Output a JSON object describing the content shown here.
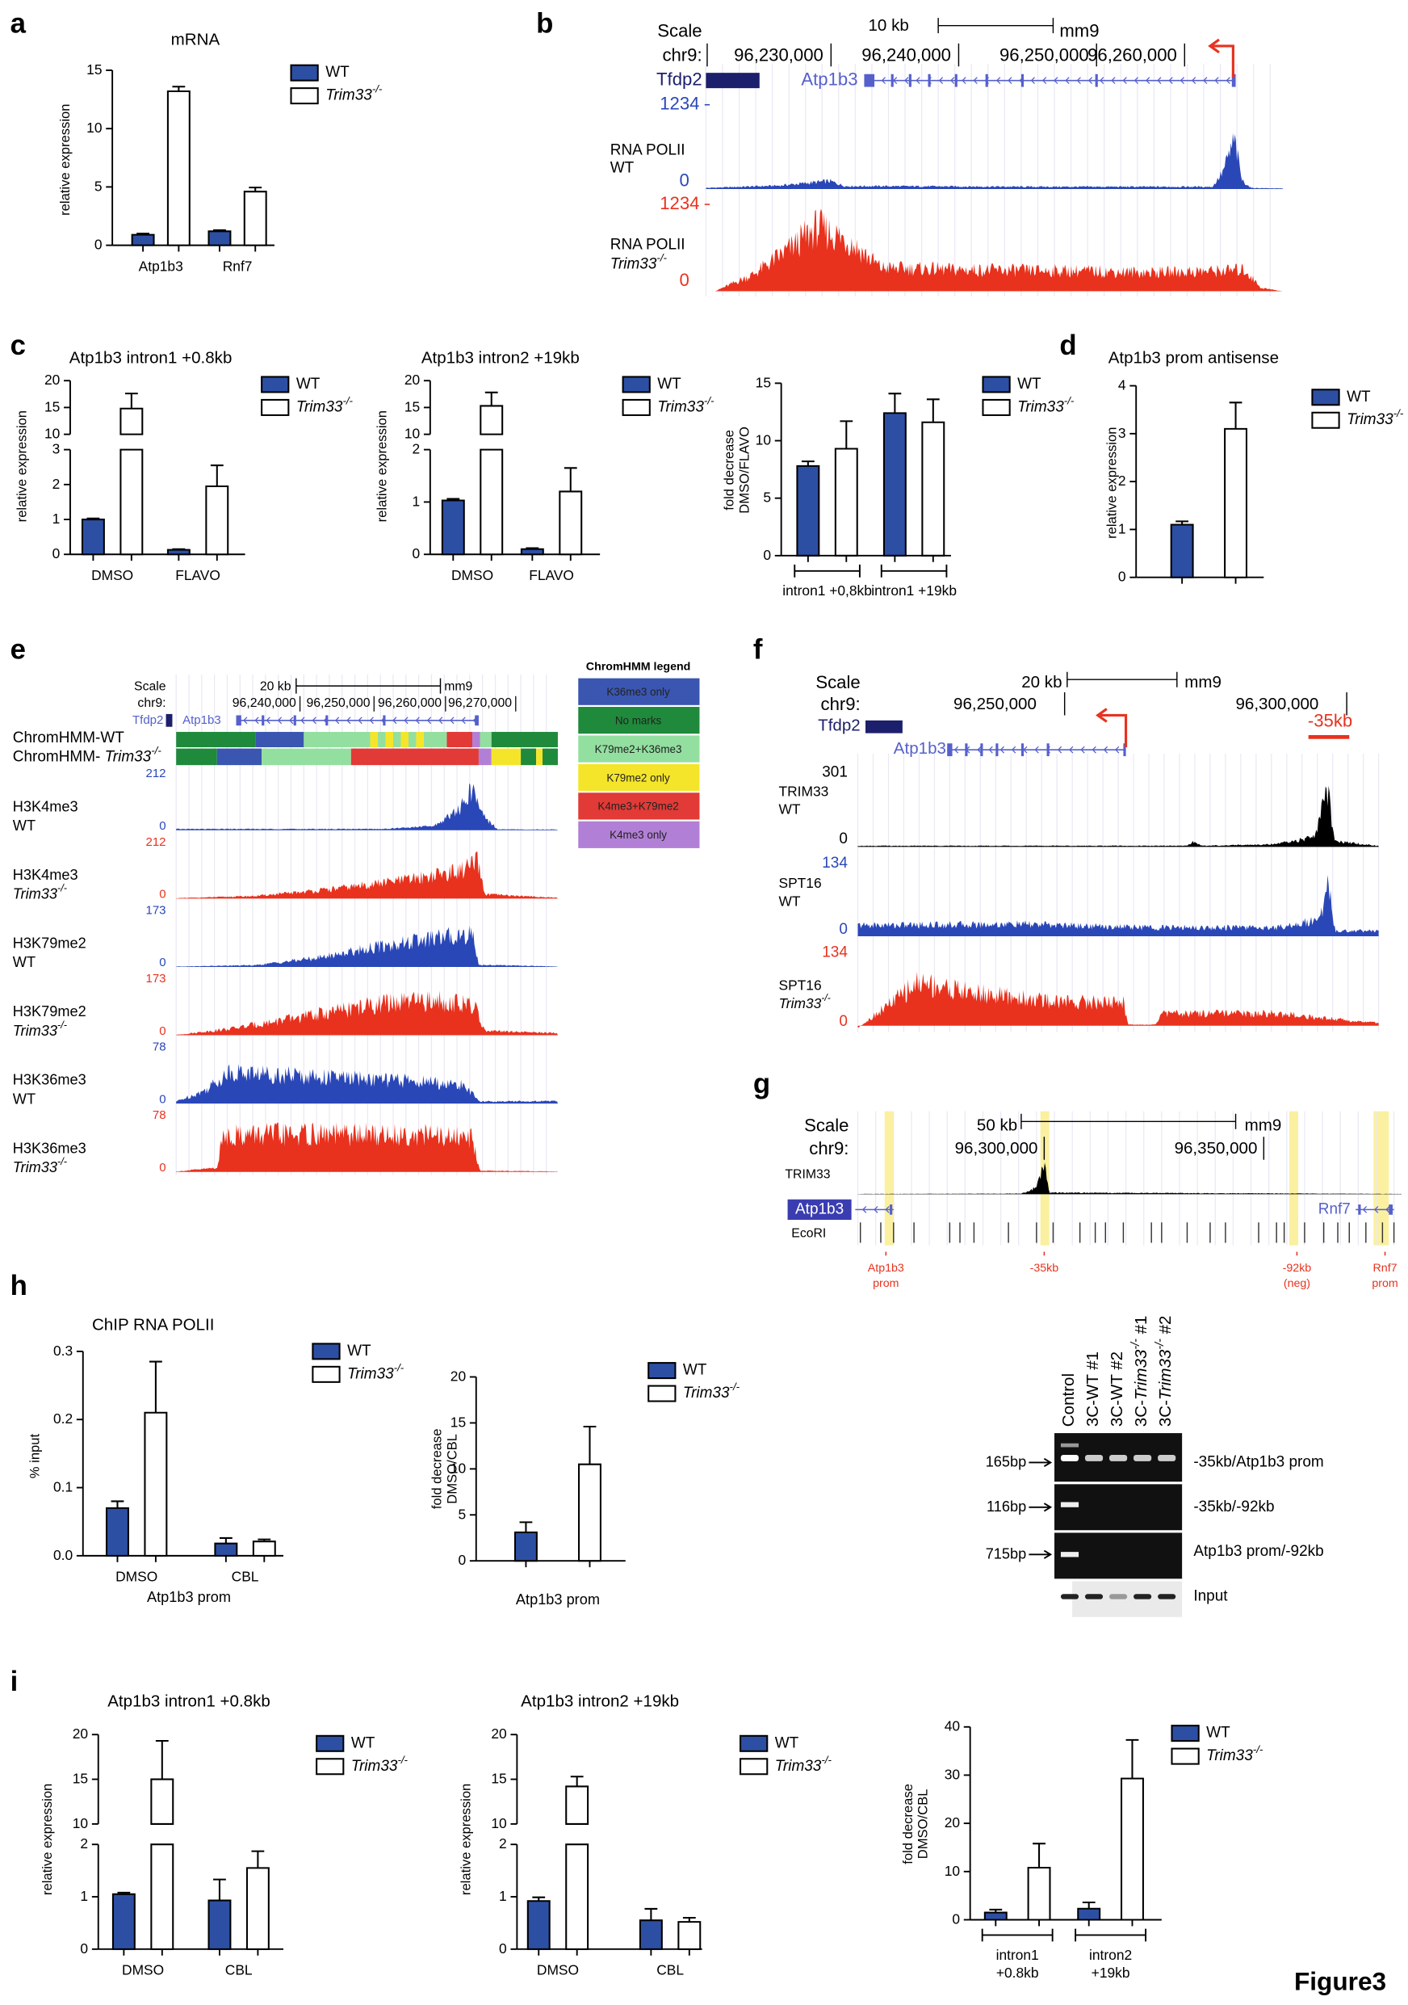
{
  "panel_labels": [
    "a",
    "b",
    "c",
    "d",
    "e",
    "f",
    "g",
    "h",
    "i"
  ],
  "figure_label": "Figure3",
  "chart_data": [
    {
      "type": "bar",
      "title": "mRNA",
      "ylabel": "relative expression",
      "categories": [
        "Atp1b3",
        "Rnf7"
      ],
      "series": [
        {
          "name": "WT",
          "color": "#2d4fa3",
          "values": [
            0.9,
            1.2
          ],
          "errors": [
            0.1,
            0.1
          ]
        },
        {
          "name": "Trim33-/-",
          "color": "#ffffff",
          "values": [
            13.2,
            4.6
          ],
          "errors": [
            0.4,
            0.35
          ]
        }
      ],
      "ylim": [
        0,
        15
      ],
      "yticks": [
        0,
        5,
        10,
        15
      ]
    },
    {
      "type": "bar",
      "title": "Atp1b3 intron1 +0.8kb",
      "ylabel": "relative expression",
      "categories": [
        "DMSO",
        "FLAVO"
      ],
      "series": [
        {
          "name": "WT",
          "color": "#2d4fa3",
          "values": [
            1.0,
            0.13
          ],
          "errors": [
            0.03,
            0.02
          ]
        },
        {
          "name": "Trim33-/-",
          "color": "#ffffff",
          "values": [
            14.8,
            1.95
          ],
          "errors": [
            2.8,
            0.6
          ]
        }
      ],
      "ylim": [
        0,
        20
      ],
      "ybreak": [
        3,
        10
      ],
      "yticks": [
        0,
        1,
        2,
        3,
        10,
        15,
        20
      ]
    },
    {
      "type": "bar",
      "title": "Atp1b3 intron2 +19kb",
      "ylabel": "relative expression",
      "categories": [
        "DMSO",
        "FLAVO"
      ],
      "series": [
        {
          "name": "WT",
          "color": "#2d4fa3",
          "values": [
            1.03,
            0.1
          ],
          "errors": [
            0.03,
            0.02
          ]
        },
        {
          "name": "Trim33-/-",
          "color": "#ffffff",
          "values": [
            15.3,
            1.2
          ],
          "errors": [
            2.5,
            0.45
          ]
        }
      ],
      "ylim": [
        0,
        20
      ],
      "ybreak": [
        2,
        10
      ],
      "yticks": [
        0,
        1,
        2,
        10,
        15,
        20
      ]
    },
    {
      "type": "bar",
      "ylabel": [
        "fold decrease",
        "DMSO/FLAVO"
      ],
      "categories": [
        "intron1 +0,8kb",
        "intron1 +19kb"
      ],
      "brackets": true,
      "series": [
        {
          "name": "WT",
          "color": "#2d4fa3",
          "values": [
            7.8,
            12.4
          ],
          "errors": [
            0.4,
            1.7
          ]
        },
        {
          "name": "Trim33-/-",
          "color": "#ffffff",
          "values": [
            9.3,
            11.6
          ],
          "errors": [
            2.4,
            2.0
          ]
        }
      ],
      "ylim": [
        0,
        15
      ],
      "yticks": [
        0,
        5,
        10,
        15
      ]
    },
    {
      "type": "bar",
      "title": "Atp1b3 prom antisense",
      "ylabel": "relative expression",
      "categories": [
        null
      ],
      "series": [
        {
          "name": "WT",
          "color": "#2d4fa3",
          "values": [
            1.1
          ],
          "errors": [
            0.07
          ]
        },
        {
          "name": "Trim33-/-",
          "color": "#ffffff",
          "values": [
            3.1
          ],
          "errors": [
            0.55
          ]
        }
      ],
      "ylim": [
        0,
        4
      ],
      "yticks": [
        0,
        1,
        2,
        3,
        4
      ]
    },
    {
      "type": "bar",
      "title": "ChIP RNA POLII",
      "ylabel": "% input",
      "xlabel": "Atp1b3 prom",
      "categories": [
        "DMSO",
        "CBL"
      ],
      "series": [
        {
          "name": "WT",
          "color": "#2d4fa3",
          "values": [
            0.07,
            0.018
          ],
          "errors": [
            0.01,
            0.008
          ]
        },
        {
          "name": "Trim33-/-",
          "color": "#ffffff",
          "values": [
            0.21,
            0.021
          ],
          "errors": [
            0.075,
            0.003
          ]
        }
      ],
      "ylim": [
        0,
        0.3
      ],
      "yticks": [
        {
          "value": 0,
          "label": "0.0"
        },
        0.1,
        0.2,
        0.3
      ]
    },
    {
      "type": "bar",
      "ylabel": [
        "fold decrease",
        "DMSO/CBL"
      ],
      "xlabel": "Atp1b3 prom",
      "categories": [
        null
      ],
      "series": [
        {
          "name": "WT",
          "color": "#2d4fa3",
          "values": [
            3.1
          ],
          "errors": [
            1.1
          ]
        },
        {
          "name": "Trim33-/-",
          "color": "#ffffff",
          "values": [
            10.5
          ],
          "errors": [
            4.1
          ]
        }
      ],
      "ylim": [
        0,
        20
      ],
      "yticks": [
        0,
        5,
        10,
        15,
        20
      ]
    },
    {
      "type": "bar",
      "title": "Atp1b3 intron1 +0.8kb",
      "ylabel": "relative expression",
      "categories": [
        "DMSO",
        "CBL"
      ],
      "series": [
        {
          "name": "WT",
          "color": "#2d4fa3",
          "values": [
            1.05,
            0.93
          ],
          "errors": [
            0.03,
            0.4
          ]
        },
        {
          "name": "Trim33-/-",
          "color": "#ffffff",
          "values": [
            15.0,
            1.55
          ],
          "errors": [
            4.3,
            0.32
          ]
        }
      ],
      "ylim": [
        0,
        20
      ],
      "ybreak": [
        2,
        10
      ],
      "yticks": [
        0,
        1,
        2,
        10,
        15,
        20
      ]
    },
    {
      "type": "bar",
      "title": "Atp1b3 intron2 +19kb",
      "ylabel": "relative expression",
      "categories": [
        "DMSO",
        "CBL"
      ],
      "series": [
        {
          "name": "WT",
          "color": "#2d4fa3",
          "values": [
            0.92,
            0.55
          ],
          "errors": [
            0.07,
            0.22
          ]
        },
        {
          "name": "Trim33-/-",
          "color": "#ffffff",
          "values": [
            14.2,
            0.52
          ],
          "errors": [
            1.1,
            0.08
          ]
        }
      ],
      "ylim": [
        0,
        20
      ],
      "ybreak": [
        2,
        10
      ],
      "yticks": [
        0,
        1,
        2,
        10,
        15,
        20
      ]
    },
    {
      "type": "bar",
      "ylabel": [
        "fold decrease",
        "DMSO/CBL"
      ],
      "categories": [
        [
          "intron1",
          "+0.8kb"
        ],
        [
          "intron2",
          "+19kb"
        ]
      ],
      "brackets": true,
      "series": [
        {
          "name": "WT",
          "color": "#2d4fa3",
          "values": [
            1.5,
            2.3
          ],
          "errors": [
            0.6,
            1.3
          ]
        },
        {
          "name": "Trim33-/-",
          "color": "#ffffff",
          "values": [
            10.8,
            29.3
          ],
          "errors": [
            5.0,
            8.0
          ]
        }
      ],
      "ylim": [
        0,
        40
      ],
      "yticks": [
        0,
        10,
        20,
        30,
        40
      ]
    }
  ],
  "browser_b": {
    "scale": "Scale",
    "scale_bar": "10 kb",
    "assembly": "mm9",
    "chrom": "chr9:",
    "positions": [
      "96,230,000",
      "96,240,000",
      "96,250,000",
      "96,260,000"
    ],
    "genes": [
      "Tfdp2",
      "Atp1b3"
    ],
    "tracks": [
      {
        "max": "1234",
        "label": [
          "RNA POLII",
          "WT"
        ],
        "min": "0"
      },
      {
        "max": "1234",
        "label": [
          "RNA POLII",
          "Trim33-/-"
        ],
        "min": "0"
      }
    ]
  },
  "browser_e": {
    "scale": "Scale",
    "scale_bar": "20 kb",
    "assembly": "mm9",
    "chrom": "chr9:",
    "positions": [
      "96,240,000",
      "96,250,000",
      "96,260,000",
      "96,270,000"
    ],
    "genes": [
      "Tfdp2",
      "Atp1b3"
    ],
    "chromhmm": [
      "ChromHMM-WT",
      "ChromHMM- Trim33-/-"
    ],
    "tracks": [
      {
        "max": "212",
        "label": [
          "H3K4me3",
          "WT"
        ],
        "min": "0"
      },
      {
        "max": "212",
        "label": [
          "H3K4me3",
          "Trim33-/-"
        ],
        "min": "0"
      },
      {
        "max": "173",
        "label": [
          "H3K79me2",
          "WT"
        ],
        "min": "0"
      },
      {
        "max": "173",
        "label": [
          "H3K79me2",
          "Trim33-/-"
        ],
        "min": "0"
      },
      {
        "max": "78",
        "label": [
          "H3K36me3",
          "WT"
        ],
        "min": "0"
      },
      {
        "max": "78",
        "label": [
          "H3K36me3",
          "Trim33-/-"
        ],
        "min": "0"
      }
    ]
  },
  "chromhmm_legend": {
    "title": "ChromHMM legend",
    "states": [
      {
        "name": "K36me3 only",
        "color": "#3a56b0"
      },
      {
        "name": "No marks",
        "color": "#1f8a3b"
      },
      {
        "name": "K79me2+K36me3",
        "color": "#93dfa0"
      },
      {
        "name": "K79me2 only",
        "color": "#f5e52a"
      },
      {
        "name": "K4me3+K79me2",
        "color": "#e23a36"
      },
      {
        "name": "K4me3 only",
        "color": "#b27fd6"
      }
    ]
  },
  "browser_f": {
    "scale": "Scale",
    "scale_bar": "20 kb",
    "assembly": "mm9",
    "chrom": "chr9:",
    "positions": [
      "96,250,000",
      "96,300,000"
    ],
    "genes": [
      "Tfdp2",
      "Atp1b3"
    ],
    "marker": "-35kb",
    "tracks": [
      {
        "max": "301",
        "label": [
          "TRIM33",
          "WT"
        ],
        "min": "0"
      },
      {
        "max": "134",
        "label": [
          "SPT16",
          "WT"
        ],
        "min": "0"
      },
      {
        "max": "134",
        "label": [
          "SPT16",
          "Trim33-/-"
        ],
        "min": "0"
      }
    ]
  },
  "browser_g": {
    "scale": "Scale",
    "scale_bar": "50 kb",
    "assembly": "mm9",
    "chrom": "chr9:",
    "positions": [
      "96,300,000",
      "96,350,000"
    ],
    "genes": [
      "Atp1b3",
      "Rnf7"
    ],
    "tracks": [
      "TRIM33",
      "EcoRI"
    ],
    "regions": [
      [
        "Atp1b3",
        "prom"
      ],
      [
        "-35kb"
      ],
      [
        "-92kb",
        "(neg)"
      ],
      [
        "Rnf7",
        "prom"
      ]
    ]
  },
  "gel": {
    "lanes": [
      "Control",
      "3C-WT #1",
      "3C-WT #2",
      "3C-Trim33-/- #1",
      "3C-Trim33-/- #2"
    ],
    "sizes": [
      "165bp",
      "116bp",
      "715bp"
    ],
    "products": [
      "-35kb/Atp1b3 prom",
      "-35kb/-92kb",
      "Atp1b3 prom/-92kb",
      "Input"
    ]
  }
}
